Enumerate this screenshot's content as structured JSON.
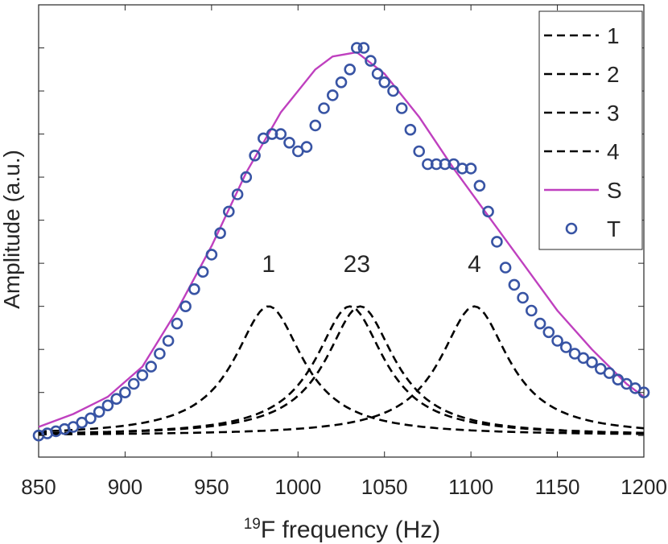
{
  "chart_data": {
    "type": "line",
    "title": "",
    "xlabel_sup": "19",
    "xlabel_main": "F frequency (Hz)",
    "ylabel": "Amplitude (a.u.)",
    "xlim": [
      850,
      1200
    ],
    "ylim": [
      -0.05,
      1.0
    ],
    "xticks": [
      850,
      900,
      950,
      1000,
      1050,
      1100,
      1150,
      1200
    ],
    "yticks_labeled": false,
    "grid": false,
    "legend": {
      "position": "top-right",
      "entries": [
        "1",
        "2",
        "3",
        "4",
        "S",
        "T"
      ]
    },
    "peak_labels": [
      {
        "text": "1",
        "x": 983,
        "y": 0.38
      },
      {
        "text": "23",
        "x": 1034,
        "y": 0.38
      },
      {
        "text": "4",
        "x": 1102,
        "y": 0.38
      }
    ],
    "series": [
      {
        "name": "1",
        "style": "dashed",
        "color": "#000000",
        "model": "lorentzian",
        "center": 983,
        "width": 48,
        "amplitude": 0.3
      },
      {
        "name": "2",
        "style": "dashed",
        "color": "#000000",
        "model": "lorentzian",
        "center": 1030,
        "width": 48,
        "amplitude": 0.3
      },
      {
        "name": "3",
        "style": "dashed",
        "color": "#000000",
        "model": "lorentzian",
        "center": 1036,
        "width": 48,
        "amplitude": 0.3
      },
      {
        "name": "4",
        "style": "dashed",
        "color": "#000000",
        "model": "lorentzian",
        "center": 1102,
        "width": 48,
        "amplitude": 0.3
      },
      {
        "name": "S",
        "style": "solid",
        "color": "#BF40BF",
        "x": [
          850,
          870,
          890,
          910,
          930,
          950,
          970,
          990,
          1010,
          1020,
          1034,
          1050,
          1070,
          1090,
          1110,
          1130,
          1150,
          1170,
          1190,
          1200
        ],
        "y": [
          0.02,
          0.05,
          0.09,
          0.16,
          0.29,
          0.44,
          0.61,
          0.75,
          0.85,
          0.88,
          0.89,
          0.84,
          0.74,
          0.62,
          0.51,
          0.4,
          0.29,
          0.2,
          0.12,
          0.09
        ]
      },
      {
        "name": "T",
        "style": "markers",
        "color": "#3854A4",
        "x": [
          850,
          855,
          860,
          865,
          870,
          875,
          880,
          885,
          890,
          895,
          900,
          905,
          910,
          915,
          920,
          925,
          930,
          935,
          940,
          945,
          950,
          955,
          960,
          965,
          970,
          975,
          980,
          985,
          990,
          995,
          1000,
          1005,
          1010,
          1015,
          1020,
          1025,
          1030,
          1034,
          1038,
          1042,
          1046,
          1050,
          1055,
          1060,
          1065,
          1070,
          1075,
          1080,
          1085,
          1090,
          1095,
          1100,
          1105,
          1110,
          1115,
          1120,
          1125,
          1130,
          1135,
          1140,
          1145,
          1150,
          1155,
          1160,
          1165,
          1170,
          1175,
          1180,
          1185,
          1190,
          1195,
          1200
        ],
        "y": [
          0.0,
          0.005,
          0.01,
          0.015,
          0.02,
          0.03,
          0.04,
          0.055,
          0.07,
          0.085,
          0.1,
          0.12,
          0.14,
          0.16,
          0.19,
          0.22,
          0.26,
          0.3,
          0.34,
          0.38,
          0.42,
          0.47,
          0.52,
          0.56,
          0.6,
          0.65,
          0.69,
          0.7,
          0.7,
          0.68,
          0.66,
          0.67,
          0.72,
          0.76,
          0.79,
          0.82,
          0.85,
          0.9,
          0.9,
          0.87,
          0.84,
          0.82,
          0.8,
          0.76,
          0.71,
          0.66,
          0.63,
          0.63,
          0.63,
          0.63,
          0.62,
          0.62,
          0.58,
          0.52,
          0.45,
          0.39,
          0.35,
          0.32,
          0.29,
          0.26,
          0.24,
          0.22,
          0.205,
          0.19,
          0.18,
          0.17,
          0.155,
          0.145,
          0.13,
          0.12,
          0.11,
          0.1
        ]
      }
    ]
  }
}
